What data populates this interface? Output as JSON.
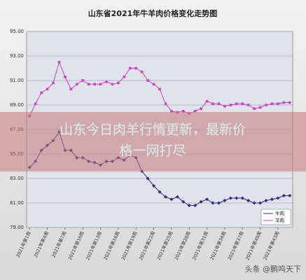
{
  "chart_data": {
    "type": "line",
    "title": "山东省2021年牛羊肉价格变化走势图",
    "categories": [
      "2021年第1周",
      null,
      null,
      "2021年第4周",
      null,
      null,
      "2021年第7周",
      null,
      null,
      "2021年第10周",
      null,
      null,
      "2021年第13周",
      null,
      null,
      "2021年第16周",
      null,
      null,
      "2021年第19周",
      null,
      null,
      "2021年第22周",
      null,
      null,
      "2021年第25周",
      null,
      null,
      "2021年第28周",
      null,
      null,
      "2021年第31周",
      null,
      null,
      "2021年第34周",
      null,
      null,
      "2021年第37周",
      null,
      null,
      "2021年第40周",
      null,
      null,
      "2021年第43周",
      null,
      null
    ],
    "series": [
      {
        "name": "牛肉",
        "color": "#2b2b8f",
        "values": [
          83.9,
          84.4,
          85.3,
          85.7,
          86.1,
          86.8,
          85.3,
          85.3,
          84.7,
          84.7,
          84.4,
          84.3,
          84.1,
          84.4,
          84.4,
          84.7,
          84.5,
          84.9,
          84.7,
          83.6,
          83.0,
          82.4,
          81.9,
          81.5,
          81.3,
          81.5,
          81.1,
          80.8,
          80.8,
          81.1,
          81.3,
          81.0,
          81.0,
          81.2,
          81.4,
          81.4,
          81.4,
          81.2,
          81.0,
          81.0,
          81.2,
          81.3,
          81.4,
          81.6,
          81.6
        ]
      },
      {
        "name": "羊肉",
        "color": "#d43fcf",
        "values": [
          88.1,
          89.1,
          90.0,
          90.3,
          90.8,
          92.5,
          91.3,
          90.3,
          90.7,
          91.0,
          90.7,
          90.7,
          90.7,
          90.9,
          90.7,
          90.8,
          91.3,
          92.0,
          92.0,
          91.7,
          91.0,
          90.7,
          90.3,
          89.1,
          88.5,
          88.4,
          88.5,
          88.3,
          88.5,
          88.7,
          89.3,
          89.1,
          89.1,
          88.9,
          89.0,
          89.1,
          89.1,
          89.0,
          88.7,
          88.8,
          89.0,
          89.1,
          89.1,
          89.2,
          89.2
        ]
      }
    ],
    "ylim": [
      79,
      95
    ],
    "yticks": [
      {
        "value": 79,
        "label": "79.00"
      },
      {
        "value": 81,
        "label": "81.00"
      },
      {
        "value": 83,
        "label": "83.00"
      },
      {
        "value": 85,
        "label": "85.00"
      },
      {
        "value": 87,
        "label": "87.00"
      },
      {
        "value": 89,
        "label": "89.00"
      },
      {
        "value": 91,
        "label": "91.00"
      },
      {
        "value": 93,
        "label": "93.00"
      },
      {
        "value": 95,
        "label": "95.00"
      }
    ],
    "grid": true,
    "legend": "lower-right"
  },
  "banner": [
    "山东今日肉羊行情更新，最新价",
    "格一网打尽"
  ],
  "watermark": "头条 @鹏鸣天下"
}
